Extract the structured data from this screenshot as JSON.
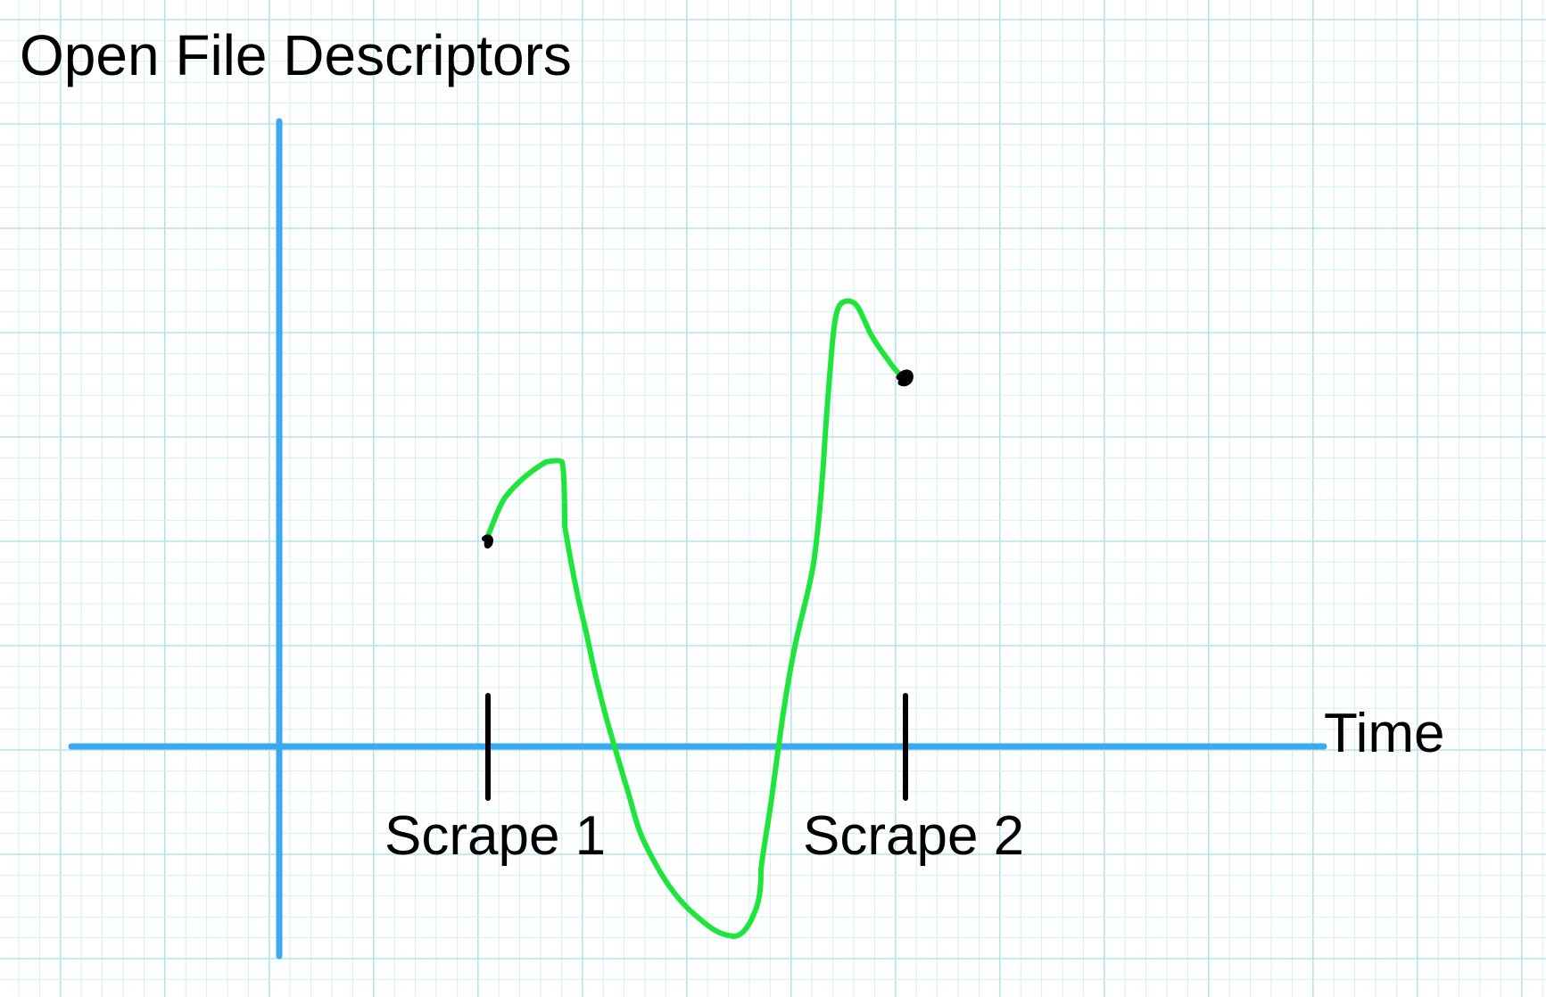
{
  "diagram": {
    "y_title": "Open File Descriptors",
    "x_title": "Time",
    "markers": [
      {
        "label": "Scrape 1"
      },
      {
        "label": "Scrape 2"
      }
    ]
  },
  "colors": {
    "background": "#ffffff",
    "grid_minor": "#d2f0f5",
    "grid_major": "#b4e3ec",
    "axis": "#39a9f0",
    "curve": "#1ee53c",
    "marker": "#000000",
    "text": "#000000"
  }
}
